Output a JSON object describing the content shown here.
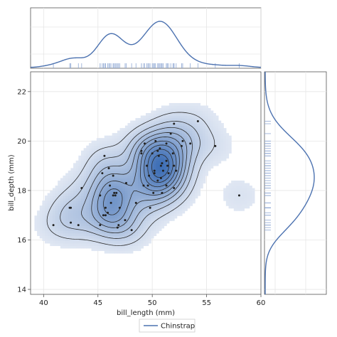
{
  "chart_data": {
    "type": "scatter",
    "subtype": "joint density plot (2D KDE contours with marginal densities and rugs)",
    "xlabel": "bill_length (mm)",
    "ylabel": "bill_depth (mm)",
    "xlim": [
      38.8,
      60
    ],
    "ylim": [
      13.8,
      22.8
    ],
    "xticks": [
      "40",
      "45",
      "50",
      "55",
      "60"
    ],
    "yticks": [
      "14",
      "16",
      "18",
      "20",
      "22"
    ],
    "grid": true,
    "legend": {
      "position": "bottom-center",
      "entries": [
        "Chinstrap"
      ]
    },
    "colors": {
      "line": "#4c72b0",
      "fill_low": "#e8edf6",
      "fill_high": "#3f6fb5",
      "points": "#222222",
      "contour": "#2b2b2b",
      "grid": "#e6e6e6"
    },
    "series": [
      {
        "name": "Chinstrap",
        "bill_length_mm": [
          46.5,
          50.0,
          51.3,
          45.4,
          52.7,
          45.2,
          46.1,
          51.3,
          46.0,
          51.3,
          46.6,
          51.7,
          47.0,
          52.0,
          45.9,
          50.5,
          50.3,
          58.0,
          46.4,
          49.2,
          42.4,
          48.5,
          43.2,
          50.6,
          46.7,
          52.0,
          50.5,
          49.5,
          46.4,
          52.8,
          40.9,
          54.2,
          42.5,
          51.0,
          49.7,
          47.5,
          47.6,
          52.0,
          46.9,
          53.5,
          49.0,
          46.2,
          50.9,
          45.5,
          50.9,
          50.8,
          50.1,
          49.0,
          51.5,
          49.8,
          48.1,
          51.4,
          45.7,
          50.7,
          42.5,
          52.2,
          45.2,
          49.3,
          50.2,
          45.6,
          51.9,
          46.8,
          45.7,
          55.8,
          43.5,
          49.6,
          50.8,
          50.2
        ],
        "bill_depth_mm": [
          17.9,
          19.5,
          19.2,
          18.7,
          19.8,
          17.8,
          18.2,
          18.2,
          18.9,
          19.9,
          17.8,
          20.3,
          17.3,
          18.1,
          17.1,
          19.6,
          20.0,
          17.8,
          18.6,
          18.2,
          17.3,
          17.5,
          16.6,
          19.4,
          17.9,
          19.0,
          18.4,
          19.0,
          17.8,
          20.0,
          16.6,
          20.8,
          16.7,
          18.8,
          18.6,
          16.8,
          18.3,
          20.7,
          16.6,
          19.9,
          19.5,
          17.5,
          19.1,
          17.0,
          17.9,
          18.5,
          17.9,
          19.6,
          18.7,
          17.3,
          16.4,
          19.0,
          17.3,
          19.7,
          17.3,
          18.8,
          16.6,
          19.9,
          18.8,
          19.4,
          19.5,
          16.5,
          17.0,
          19.8,
          18.1,
          18.2,
          19.0,
          18.7
        ]
      }
    ]
  }
}
